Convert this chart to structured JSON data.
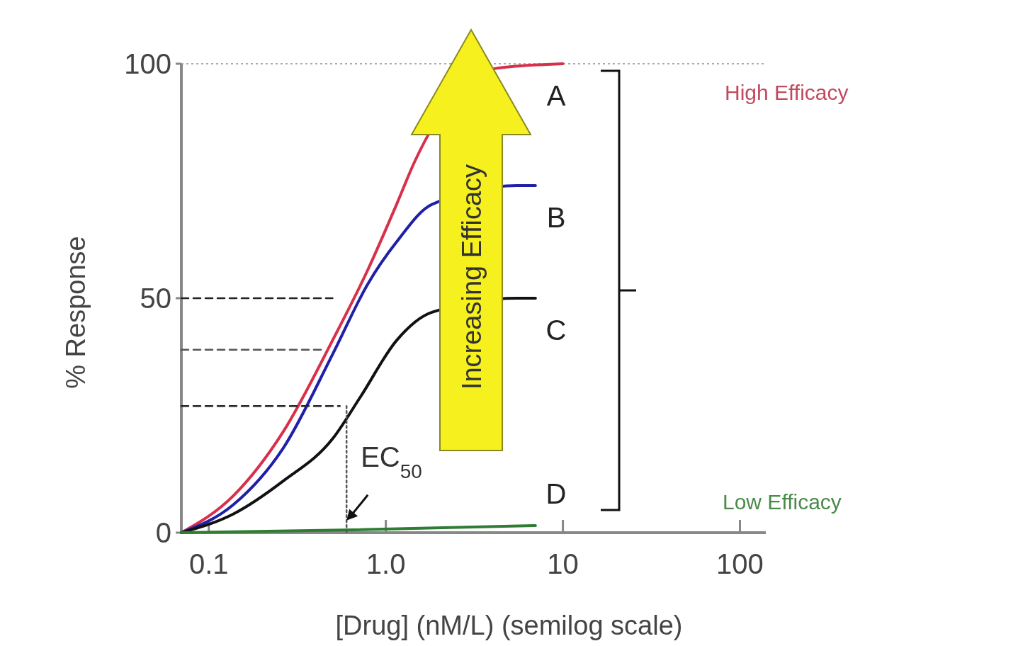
{
  "chart_data": {
    "type": "line",
    "xlabel": "[Drug] (nM/L) (semilog scale)",
    "ylabel": "% Response",
    "log": "x",
    "xlim": [
      0.07,
      140
    ],
    "ylim": [
      0,
      100
    ],
    "xticks": [
      {
        "value": 0.1,
        "label": "0.1"
      },
      {
        "value": 1,
        "label": "1.0"
      },
      10,
      100
    ],
    "yticks": [
      0,
      50,
      100
    ],
    "grid": false,
    "series": [
      {
        "name": "A",
        "color": "#d9304a",
        "x": [
          0.07,
          0.138,
          0.263,
          0.5,
          0.79,
          1.15,
          1.45,
          4.17,
          10
        ],
        "values": [
          0,
          7.9,
          21.5,
          41,
          56,
          70,
          79,
          99,
          100
        ]
      },
      {
        "name": "B",
        "color": "#1f1fa8",
        "x": [
          0.07,
          0.138,
          0.263,
          0.5,
          0.79,
          1.15,
          1.82,
          5.5,
          7
        ],
        "values": [
          0,
          6,
          18,
          38,
          53,
          62,
          70,
          74,
          74
        ]
      },
      {
        "name": "C",
        "color": "#111111",
        "x": [
          0.07,
          0.138,
          0.263,
          0.5,
          0.72,
          1.15,
          1.82,
          5.5,
          7
        ],
        "values": [
          0,
          4,
          11,
          20,
          29,
          41,
          47,
          50,
          50
        ]
      },
      {
        "name": "D",
        "color": "#2e7d32",
        "x": [
          0.07,
          0.66,
          7
        ],
        "values": [
          0,
          0.6,
          1.5
        ]
      },
      {
        "color": "#222222",
        "line_style": "dashed",
        "x": [
          0.07,
          0.5
        ],
        "values": [
          50,
          50
        ]
      },
      {
        "color": "#555555",
        "line_style": "dashed",
        "x": [
          0.07,
          0.45
        ],
        "values": [
          39,
          39
        ]
      },
      {
        "color": "#222222",
        "line_style": "dashed",
        "x": [
          0.07,
          0.55
        ],
        "values": [
          27,
          27
        ]
      },
      {
        "color": "#555555",
        "line_style": "dotted",
        "x": [
          0.6,
          0.6
        ],
        "values": [
          27,
          0
        ]
      }
    ],
    "ref_lines": [
      {
        "axis": "y",
        "value": 100,
        "color": "#aaaaaa",
        "line_style": "dotted"
      }
    ],
    "annotations": [
      "High Efficacy",
      "Low Efficacy",
      "Increasing Efficacy",
      {
        "text": "EC$_{50}$",
        "x": 0.6,
        "y": 2
      }
    ]
  }
}
